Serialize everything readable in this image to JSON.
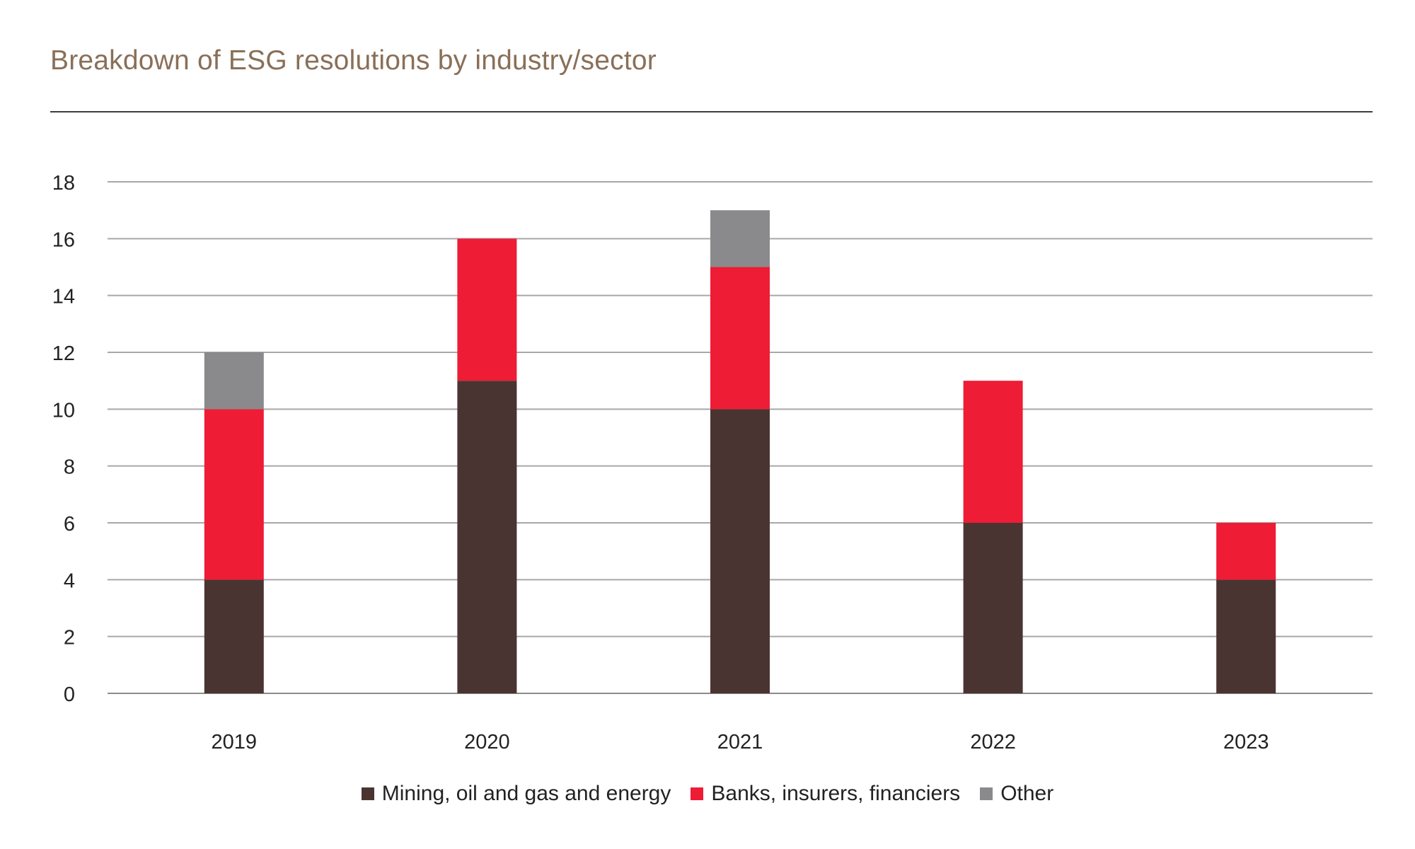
{
  "chart_data": {
    "type": "bar",
    "stacked": true,
    "title": "Breakdown of ESG resolutions by industry/sector",
    "categories": [
      "2019",
      "2020",
      "2021",
      "2022",
      "2023"
    ],
    "series": [
      {
        "name": "Mining, oil and gas and energy",
        "color": "#4a3432",
        "values": [
          4,
          11,
          10,
          6,
          4
        ]
      },
      {
        "name": "Banks, insurers, financiers",
        "color": "#ee1c35",
        "values": [
          6,
          5,
          5,
          5,
          2
        ]
      },
      {
        "name": "Other",
        "color": "#8a898b",
        "values": [
          2,
          0,
          2,
          0,
          0
        ]
      }
    ],
    "ylim": [
      0,
      18
    ],
    "yticks": [
      0,
      2,
      4,
      6,
      8,
      10,
      12,
      14,
      16,
      18
    ],
    "grid": true,
    "legend_position": "bottom"
  }
}
